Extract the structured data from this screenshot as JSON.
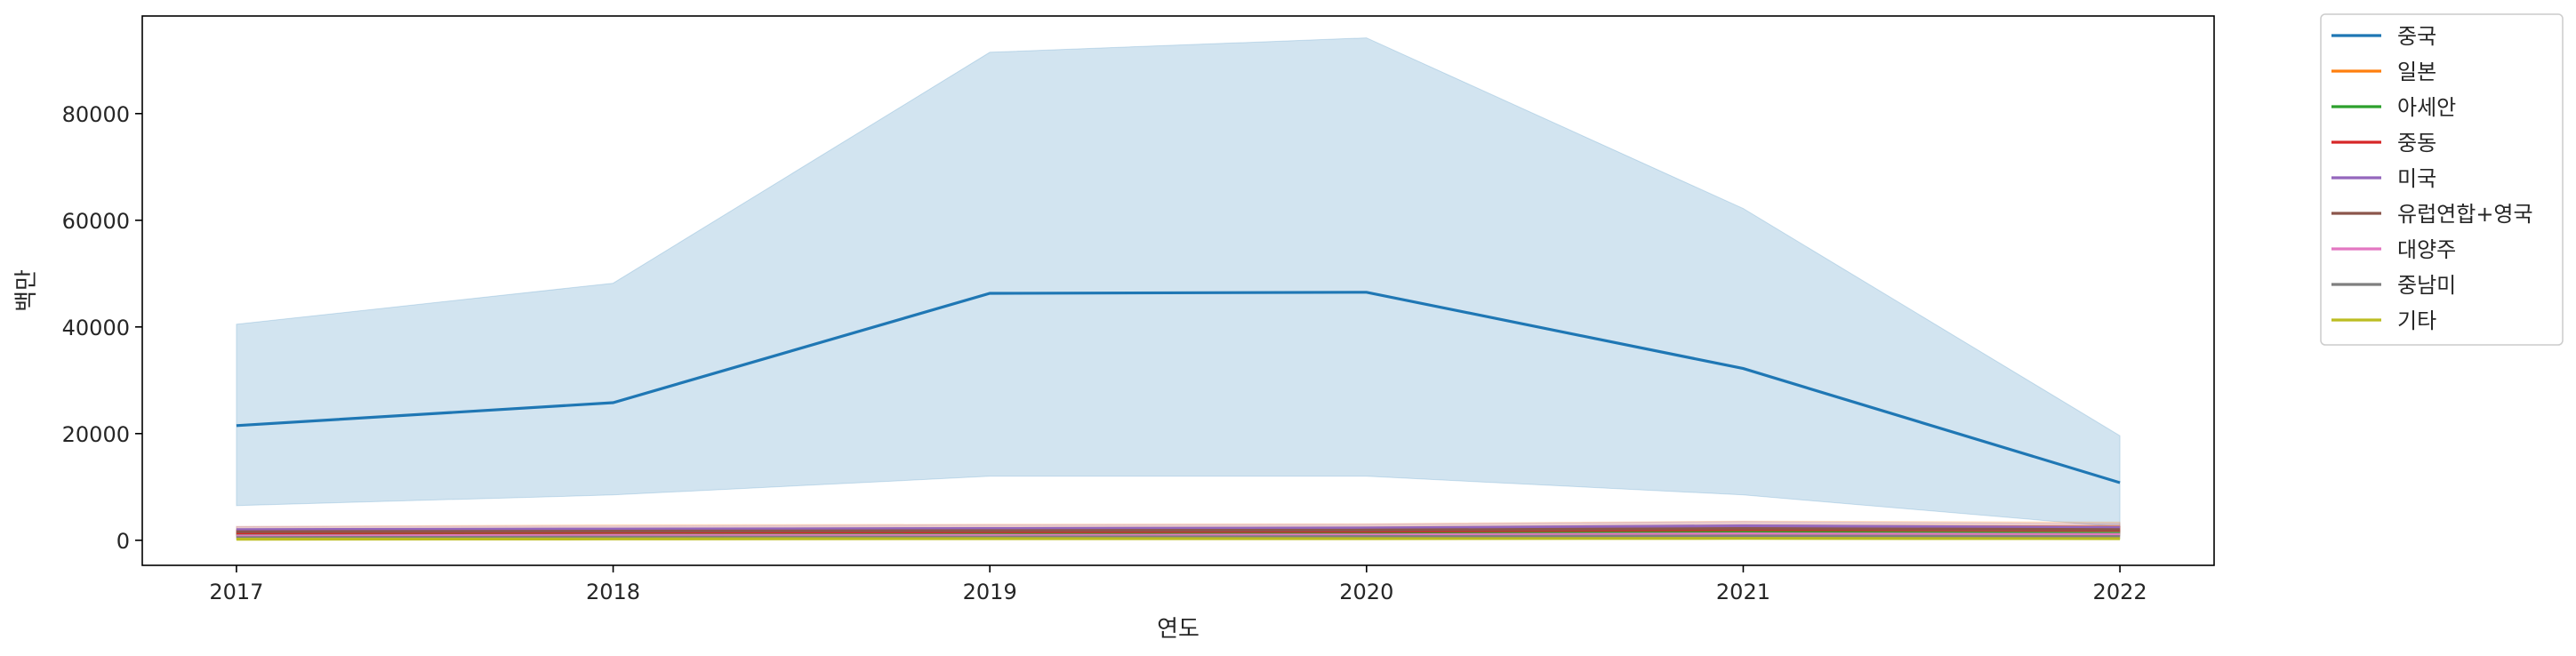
{
  "chart_data": {
    "type": "line",
    "title": "",
    "xlabel": "연도",
    "ylabel": "백만",
    "x": [
      2017,
      2018,
      2019,
      2020,
      2021,
      2022
    ],
    "xlim": [
      2016.75,
      2022.25
    ],
    "ylim": [
      -4700,
      98300
    ],
    "x_ticks": [
      "2017",
      "2018",
      "2019",
      "2020",
      "2021",
      "2022"
    ],
    "y_ticks": [
      0,
      20000,
      40000,
      60000,
      80000
    ],
    "y_tick_labels": [
      "0",
      "20000",
      "40000",
      "60000",
      "80000"
    ],
    "grid": false,
    "legend_position": "outside upper right",
    "series": [
      {
        "name": "중국",
        "color": "#1f77b4",
        "values": [
          21500,
          25800,
          46300,
          46500,
          32200,
          10800
        ],
        "ci_lower": [
          6500,
          8500,
          12000,
          12000,
          8500,
          2500
        ],
        "ci_upper": [
          40500,
          48200,
          91500,
          94200,
          62200,
          19600
        ]
      },
      {
        "name": "일본",
        "color": "#ff7f0e",
        "values": [
          1800,
          2000,
          2100,
          2200,
          2600,
          2500
        ],
        "ci_lower": [
          1000,
          1200,
          1200,
          1300,
          1600,
          1500
        ],
        "ci_upper": [
          2600,
          2900,
          3000,
          3100,
          3600,
          3400
        ]
      },
      {
        "name": "아세안",
        "color": "#2ca02c",
        "values": [
          1000,
          1100,
          1200,
          1300,
          1500,
          1300
        ],
        "ci_lower": [
          600,
          700,
          700,
          800,
          900,
          800
        ],
        "ci_upper": [
          1400,
          1500,
          1700,
          1800,
          2100,
          1800
        ]
      },
      {
        "name": "중동",
        "color": "#d62728",
        "values": [
          1400,
          1500,
          1600,
          1700,
          2000,
          1900
        ],
        "ci_lower": [
          900,
          1000,
          1000,
          1100,
          1300,
          1200
        ],
        "ci_upper": [
          1900,
          2000,
          2200,
          2300,
          2700,
          2600
        ]
      },
      {
        "name": "미국",
        "color": "#9467bd",
        "values": [
          2000,
          2100,
          2200,
          2300,
          2700,
          2400
        ],
        "ci_lower": [
          1400,
          1500,
          1500,
          1600,
          1900,
          1700
        ],
        "ci_upper": [
          2600,
          2700,
          2900,
          3000,
          3500,
          3100
        ]
      },
      {
        "name": "유럽연합+영국",
        "color": "#8c564b",
        "values": [
          1600,
          1700,
          1800,
          1900,
          2200,
          2000
        ],
        "ci_lower": [
          1100,
          1200,
          1200,
          1300,
          1500,
          1400
        ],
        "ci_upper": [
          2100,
          2200,
          2400,
          2500,
          2900,
          2600
        ]
      },
      {
        "name": "대양주",
        "color": "#e377c2",
        "values": [
          800,
          900,
          900,
          1000,
          1200,
          1100
        ],
        "ci_lower": [
          500,
          600,
          600,
          600,
          800,
          700
        ],
        "ci_upper": [
          1100,
          1200,
          1200,
          1400,
          1600,
          1500
        ]
      },
      {
        "name": "중남미",
        "color": "#7f7f7f",
        "values": [
          500,
          600,
          600,
          700,
          800,
          700
        ],
        "ci_lower": [
          300,
          400,
          400,
          400,
          500,
          400
        ],
        "ci_upper": [
          700,
          800,
          800,
          1000,
          1100,
          1000
        ]
      },
      {
        "name": "기타",
        "color": "#bcbd22",
        "values": [
          200,
          250,
          300,
          300,
          350,
          300
        ],
        "ci_lower": [
          100,
          150,
          200,
          200,
          200,
          200
        ],
        "ci_upper": [
          300,
          350,
          400,
          400,
          500,
          400
        ]
      }
    ]
  }
}
